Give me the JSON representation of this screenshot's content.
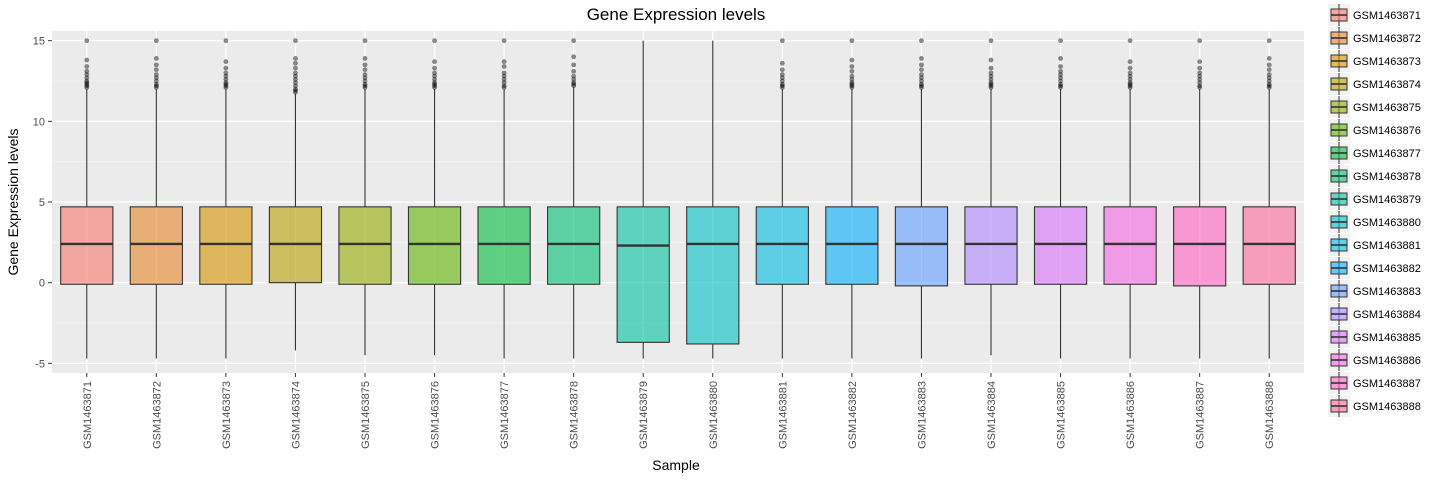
{
  "chart_data": {
    "type": "box",
    "title": "Gene Expression levels",
    "xlabel": "Sample",
    "ylabel": "Gene Expression levels",
    "ylim": [
      -5.6,
      15.6
    ],
    "yticks": [
      -5,
      0,
      5,
      10,
      15
    ],
    "ytick_labels": [
      "-5",
      "0",
      "5",
      "10",
      "15"
    ],
    "grid": true,
    "legend_position": "right",
    "categories": [
      "GSM1463871",
      "GSM1463872",
      "GSM1463873",
      "GSM1463874",
      "GSM1463875",
      "GSM1463876",
      "GSM1463877",
      "GSM1463878",
      "GSM1463879",
      "GSM1463880",
      "GSM1463881",
      "GSM1463882",
      "GSM1463883",
      "GSM1463884",
      "GSM1463885",
      "GSM1463886",
      "GSM1463887",
      "GSM1463888"
    ],
    "colors": [
      "#F8766D",
      "#E88526",
      "#D39200",
      "#B79F00",
      "#93AA00",
      "#5EB300",
      "#00BA38",
      "#00BF74",
      "#00C19F",
      "#00BFC4",
      "#00B9E3",
      "#00ADFA",
      "#619CFF",
      "#AE87FF",
      "#DB72FB",
      "#F564E3",
      "#FF61C3",
      "#FF699C"
    ],
    "boxes": [
      {
        "min": -4.7,
        "q1": -0.1,
        "median": 2.4,
        "q3": 4.7,
        "max": 12.0,
        "outliers": [
          12.1,
          12.2,
          12.3,
          12.4,
          12.5,
          12.7,
          12.9,
          13.1,
          13.4,
          13.8,
          15.0
        ]
      },
      {
        "min": -4.7,
        "q1": -0.1,
        "median": 2.4,
        "q3": 4.7,
        "max": 12.0,
        "outliers": [
          12.1,
          12.2,
          12.3,
          12.5,
          12.7,
          12.9,
          13.2,
          13.5,
          13.9,
          15.0
        ]
      },
      {
        "min": -4.7,
        "q1": -0.1,
        "median": 2.4,
        "q3": 4.7,
        "max": 12.0,
        "outliers": [
          12.1,
          12.2,
          12.3,
          12.4,
          12.6,
          12.8,
          13.0,
          13.3,
          13.7,
          15.0
        ]
      },
      {
        "min": -4.2,
        "q1": 0.0,
        "median": 2.4,
        "q3": 4.7,
        "max": 11.7,
        "outliers": [
          11.8,
          11.9,
          12.0,
          12.2,
          12.4,
          12.6,
          12.8,
          13.0,
          13.3,
          13.6,
          13.9,
          15.0
        ]
      },
      {
        "min": -4.5,
        "q1": -0.1,
        "median": 2.4,
        "q3": 4.7,
        "max": 12.0,
        "outliers": [
          12.1,
          12.2,
          12.3,
          12.5,
          12.7,
          12.9,
          13.2,
          13.5,
          13.9,
          15.0
        ]
      },
      {
        "min": -4.5,
        "q1": -0.1,
        "median": 2.4,
        "q3": 4.7,
        "max": 12.0,
        "outliers": [
          12.1,
          12.2,
          12.3,
          12.4,
          12.6,
          12.8,
          13.0,
          13.3,
          13.7,
          15.0
        ]
      },
      {
        "min": -4.7,
        "q1": -0.1,
        "median": 2.4,
        "q3": 4.7,
        "max": 12.0,
        "outliers": [
          12.1,
          12.2,
          12.4,
          12.6,
          12.8,
          13.0,
          13.4,
          13.7,
          15.0
        ]
      },
      {
        "min": -4.7,
        "q1": -0.1,
        "median": 2.4,
        "q3": 4.7,
        "max": 12.1,
        "outliers": [
          12.2,
          12.3,
          12.4,
          12.6,
          12.8,
          13.1,
          13.5,
          14.0,
          15.0
        ]
      },
      {
        "min": -4.7,
        "q1": -3.7,
        "median": 2.3,
        "q3": 4.7,
        "max": 15.0,
        "outliers": []
      },
      {
        "min": -4.7,
        "q1": -3.8,
        "median": 2.4,
        "q3": 4.7,
        "max": 15.0,
        "outliers": []
      },
      {
        "min": -4.7,
        "q1": -0.1,
        "median": 2.4,
        "q3": 4.7,
        "max": 12.0,
        "outliers": [
          12.1,
          12.2,
          12.3,
          12.5,
          12.7,
          12.9,
          13.2,
          13.6,
          15.0
        ]
      },
      {
        "min": -4.7,
        "q1": -0.1,
        "median": 2.4,
        "q3": 4.7,
        "max": 12.0,
        "outliers": [
          12.1,
          12.2,
          12.3,
          12.4,
          12.6,
          12.8,
          13.1,
          13.4,
          13.8,
          15.0
        ]
      },
      {
        "min": -4.7,
        "q1": -0.2,
        "median": 2.4,
        "q3": 4.7,
        "max": 12.0,
        "outliers": [
          12.1,
          12.2,
          12.3,
          12.5,
          12.7,
          12.9,
          13.2,
          13.5,
          13.9,
          15.0
        ]
      },
      {
        "min": -4.5,
        "q1": -0.1,
        "median": 2.4,
        "q3": 4.7,
        "max": 12.0,
        "outliers": [
          12.1,
          12.2,
          12.3,
          12.4,
          12.6,
          12.8,
          13.0,
          13.3,
          13.8,
          15.0
        ]
      },
      {
        "min": -4.7,
        "q1": -0.1,
        "median": 2.4,
        "q3": 4.7,
        "max": 12.0,
        "outliers": [
          12.1,
          12.2,
          12.3,
          12.5,
          12.7,
          12.9,
          13.1,
          13.4,
          13.9,
          15.0
        ]
      },
      {
        "min": -4.7,
        "q1": -0.1,
        "median": 2.4,
        "q3": 4.7,
        "max": 12.0,
        "outliers": [
          12.1,
          12.2,
          12.3,
          12.4,
          12.6,
          12.8,
          13.0,
          13.3,
          13.7,
          15.0
        ]
      },
      {
        "min": -4.7,
        "q1": -0.2,
        "median": 2.4,
        "q3": 4.7,
        "max": 12.0,
        "outliers": [
          12.1,
          12.2,
          12.4,
          12.6,
          12.8,
          13.0,
          13.3,
          13.7,
          15.0
        ]
      },
      {
        "min": -4.7,
        "q1": -0.1,
        "median": 2.4,
        "q3": 4.7,
        "max": 12.0,
        "outliers": [
          12.1,
          12.2,
          12.3,
          12.5,
          12.7,
          12.9,
          13.2,
          13.5,
          13.9,
          15.0
        ]
      }
    ]
  }
}
